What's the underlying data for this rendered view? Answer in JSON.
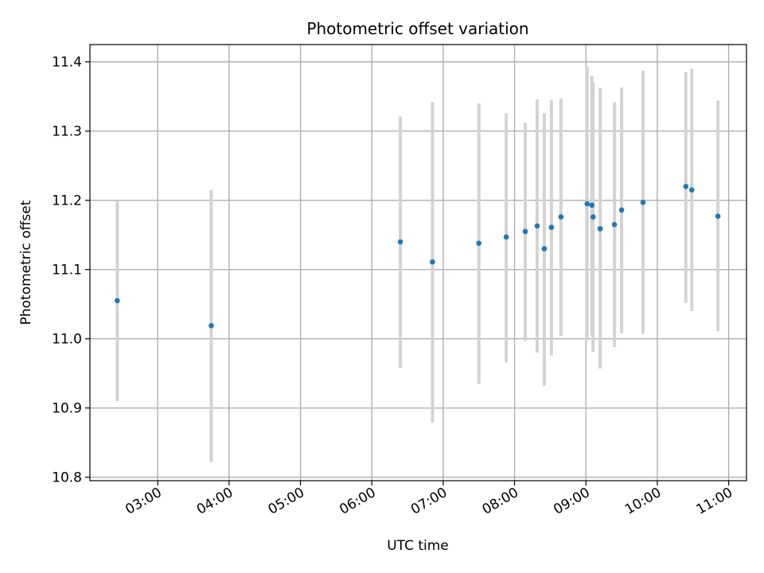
{
  "chart_data": {
    "type": "scatter",
    "title": "Photometric offset variation",
    "xlabel": "UTC time",
    "ylabel": "Photometric offset",
    "x_tick_labels": [
      "03:00",
      "04:00",
      "05:00",
      "06:00",
      "07:00",
      "08:00",
      "09:00",
      "10:00",
      "11:00"
    ],
    "y_tick_labels": [
      "10.8",
      "10.9",
      "11.0",
      "11.1",
      "11.2",
      "11.3",
      "11.4"
    ],
    "xlim": [
      "02:03",
      "11:15"
    ],
    "ylim": [
      10.795,
      11.425
    ],
    "grid": true,
    "legend": "none",
    "colors": {
      "point": "#1f77b4",
      "errorbar": "#d3d3d3",
      "grid": "#b0b0b0"
    },
    "series": [
      {
        "points": [
          {
            "time": "02:26",
            "y": 11.055,
            "low": 10.91,
            "high": 11.2
          },
          {
            "time": "03:45",
            "y": 11.019,
            "low": 10.822,
            "high": 11.215
          },
          {
            "time": "06:24",
            "y": 11.14,
            "low": 10.958,
            "high": 11.321
          },
          {
            "time": "06:51",
            "y": 11.111,
            "low": 10.879,
            "high": 11.342
          },
          {
            "time": "07:30",
            "y": 11.138,
            "low": 10.935,
            "high": 11.34
          },
          {
            "time": "07:53",
            "y": 11.147,
            "low": 10.966,
            "high": 11.326
          },
          {
            "time": "08:09",
            "y": 11.155,
            "low": 10.997,
            "high": 11.312
          },
          {
            "time": "08:19",
            "y": 11.163,
            "low": 10.98,
            "high": 11.346
          },
          {
            "time": "08:25",
            "y": 11.13,
            "low": 10.932,
            "high": 11.326
          },
          {
            "time": "08:31",
            "y": 11.161,
            "low": 10.976,
            "high": 11.345
          },
          {
            "time": "08:39",
            "y": 11.176,
            "low": 11.004,
            "high": 11.347
          },
          {
            "time": "09:01",
            "y": 11.195,
            "low": 10.997,
            "high": 11.393
          },
          {
            "time": "09:05",
            "y": 11.193,
            "low": 11.005,
            "high": 11.38
          },
          {
            "time": "09:06",
            "y": 11.176,
            "low": 10.981,
            "high": 11.371
          },
          {
            "time": "09:12",
            "y": 11.159,
            "low": 10.957,
            "high": 11.362
          },
          {
            "time": "09:24",
            "y": 11.165,
            "low": 10.988,
            "high": 11.342
          },
          {
            "time": "09:30",
            "y": 11.186,
            "low": 11.008,
            "high": 11.363
          },
          {
            "time": "09:48",
            "y": 11.197,
            "low": 11.007,
            "high": 11.387
          },
          {
            "time": "10:24",
            "y": 11.22,
            "low": 11.052,
            "high": 11.385
          },
          {
            "time": "10:29",
            "y": 11.215,
            "low": 11.04,
            "high": 11.39
          },
          {
            "time": "10:51",
            "y": 11.177,
            "low": 11.011,
            "high": 11.344
          }
        ]
      }
    ]
  }
}
